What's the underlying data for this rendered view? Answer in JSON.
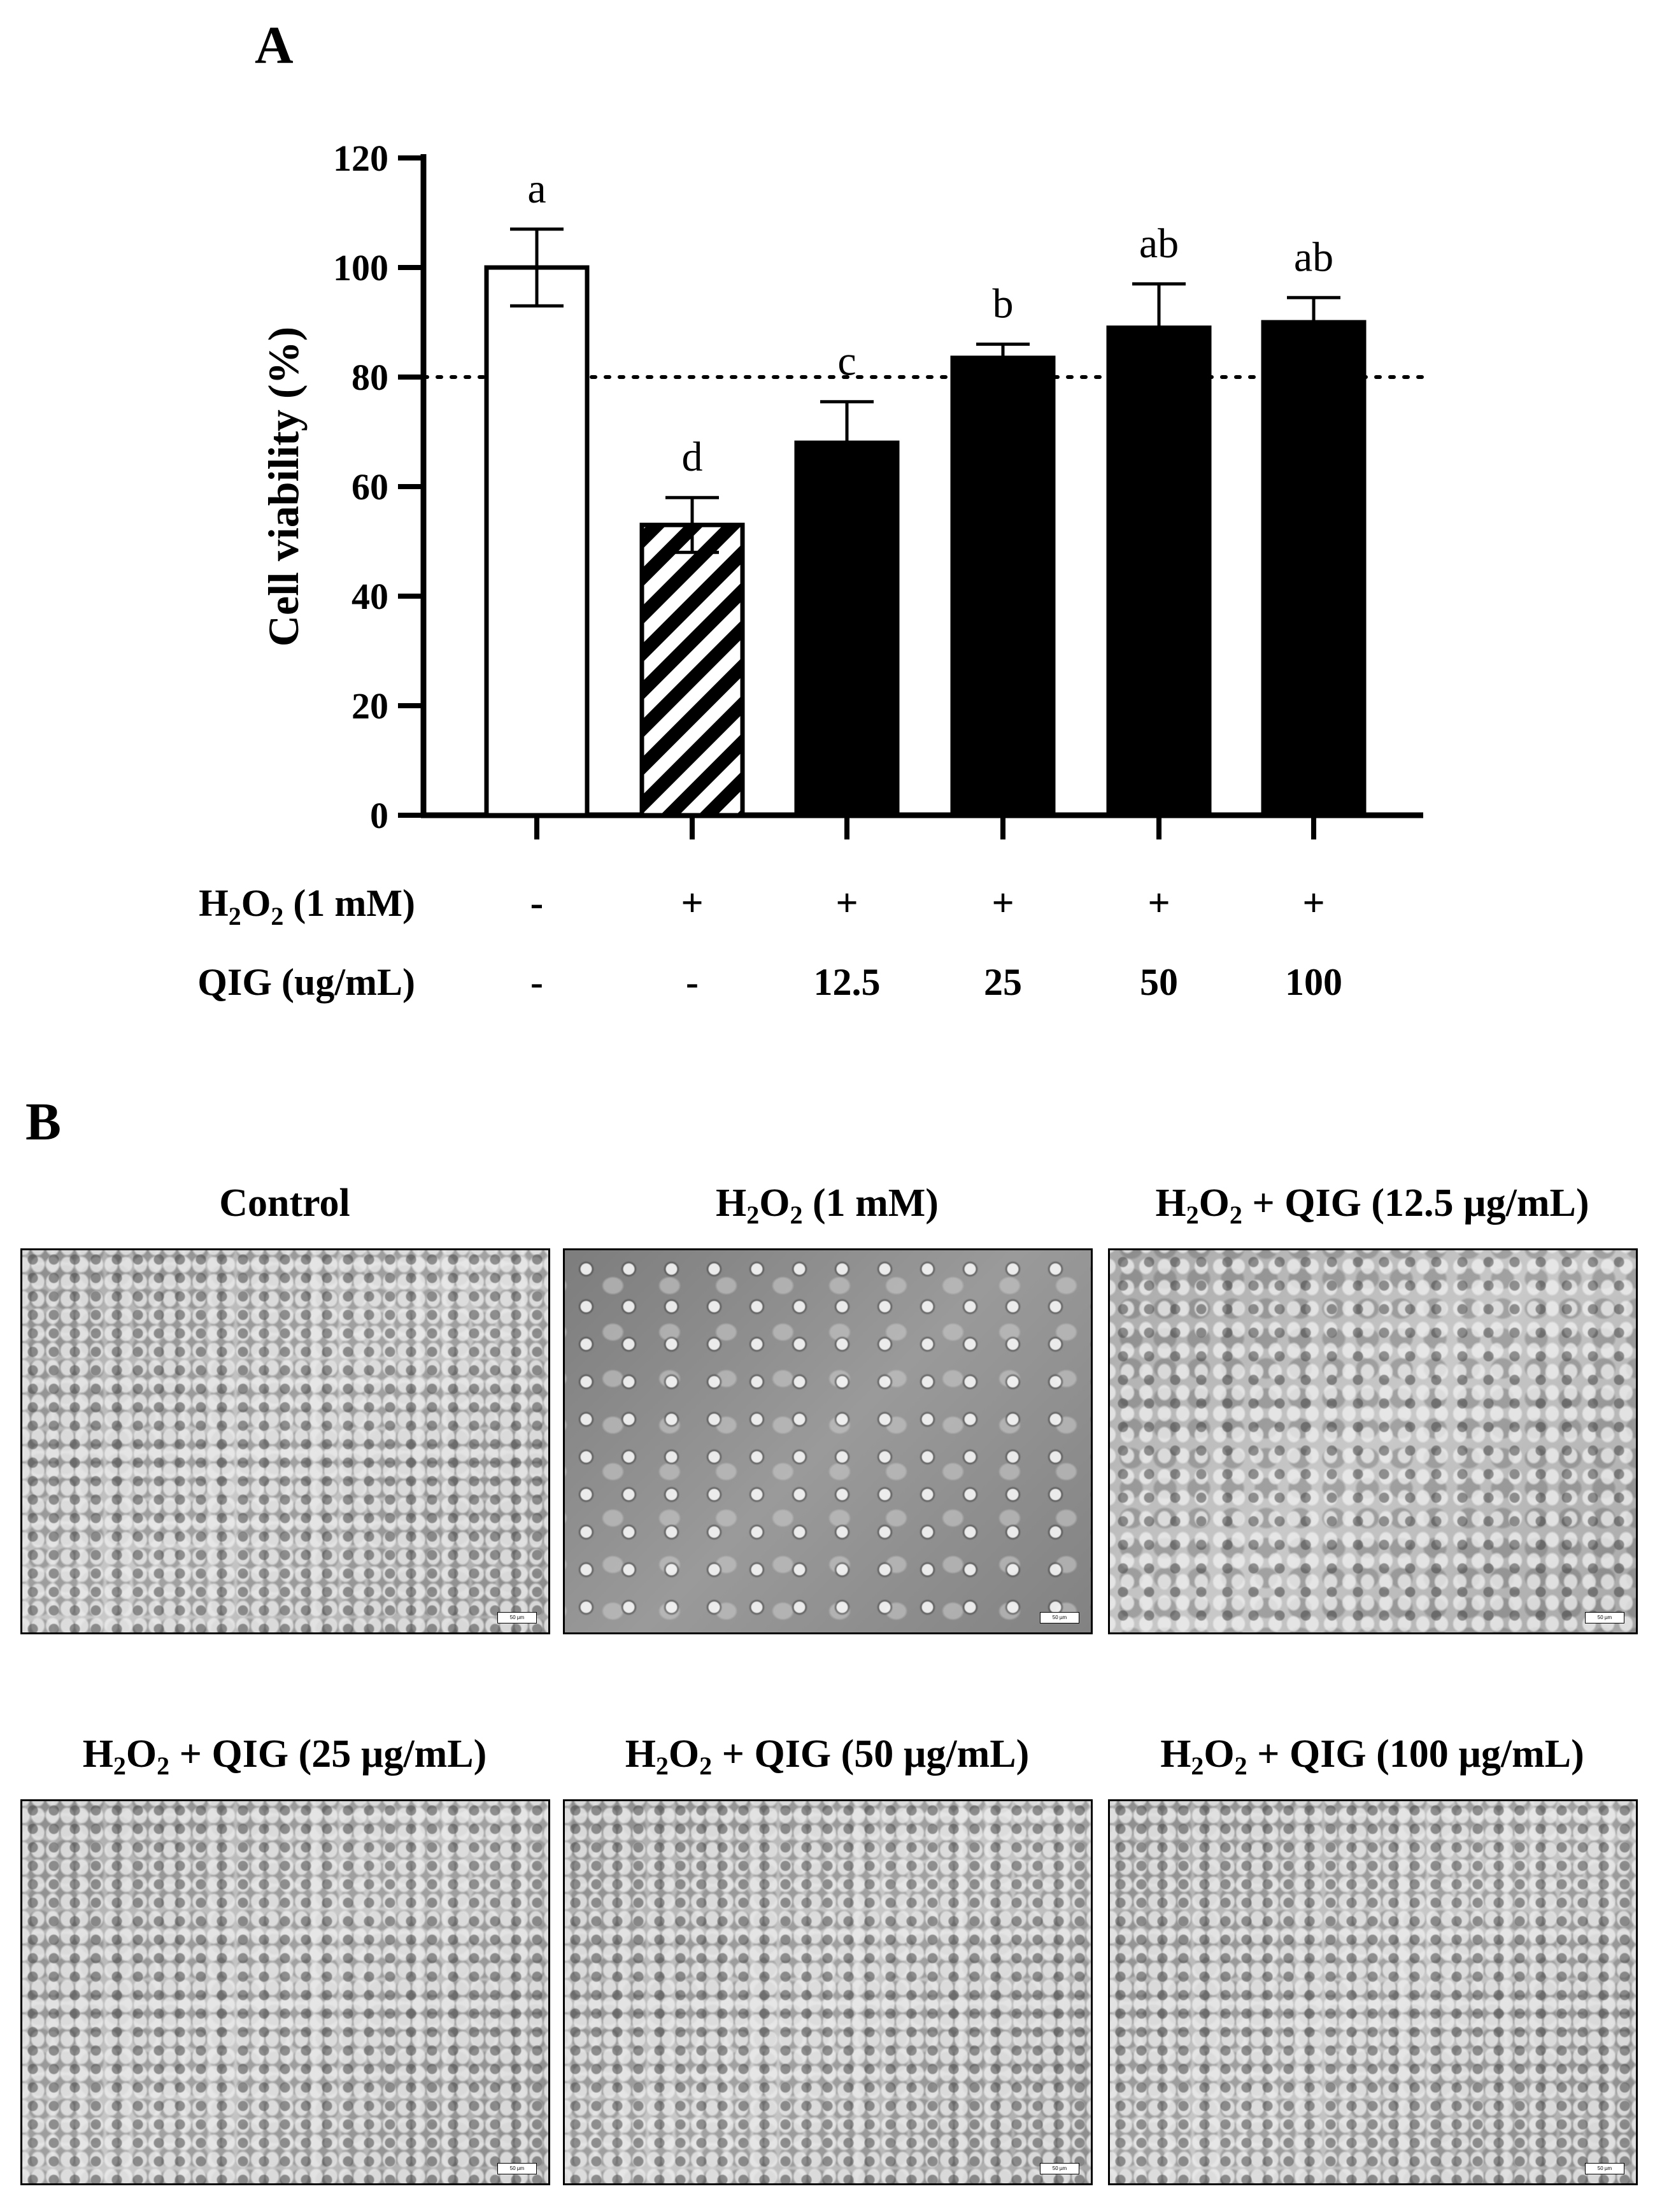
{
  "panel_a": {
    "letter": "A"
  },
  "panel_b": {
    "letter": "B"
  },
  "chart_data": {
    "type": "bar",
    "title": "",
    "xlabel": "",
    "ylabel": "Cell viability (%)",
    "ylim": [
      0,
      120
    ],
    "yticks": [
      "0",
      "20",
      "40",
      "60",
      "80",
      "100",
      "120"
    ],
    "reference_line": 80,
    "bars": [
      {
        "value": 100,
        "error": 7,
        "letter": "a",
        "fill": "white"
      },
      {
        "value": 53,
        "error": 5,
        "letter": "d",
        "fill": "hatched"
      },
      {
        "value": 68,
        "error": 7.5,
        "letter": "c",
        "fill": "black"
      },
      {
        "value": 83.5,
        "error": 2.5,
        "letter": "b",
        "fill": "black"
      },
      {
        "value": 89,
        "error": 8,
        "letter": "ab",
        "fill": "black"
      },
      {
        "value": 90,
        "error": 4.5,
        "letter": "ab",
        "fill": "black"
      }
    ],
    "treatment_rows": [
      {
        "label_main": "H",
        "label_sub1": "2",
        "label_mid": "O",
        "label_sub2": "2",
        "label_rest": " (1 mM)",
        "values": [
          "-",
          "+",
          "+",
          "+",
          "+",
          "+"
        ]
      },
      {
        "label": "QIG (ug/mL)",
        "values": [
          "-",
          "-",
          "12.5",
          "25",
          "50",
          "100"
        ]
      }
    ]
  },
  "micrographs": [
    {
      "title_pre": "",
      "title_h": "",
      "title_o": "",
      "title_post": "Control",
      "variant": "dense",
      "scale": "50 µm"
    },
    {
      "title_pre": "H",
      "title_h": "2",
      "title_o": "O",
      "title_post": " (1 mM)",
      "variant": "sparse",
      "scale": "50 µm"
    },
    {
      "title_pre": "H",
      "title_h": "2",
      "title_o": "O",
      "title_post": " + QIG (12.5 µg/mL)",
      "variant": "normal",
      "scale": "50 µm"
    },
    {
      "title_pre": "H",
      "title_h": "2",
      "title_o": "O",
      "title_post": " + QIG (25 µg/mL)",
      "variant": "dense",
      "scale": "50 µm"
    },
    {
      "title_pre": "H",
      "title_h": "2",
      "title_o": "O",
      "title_post": " + QIG (50 µg/mL)",
      "variant": "dense",
      "scale": "50 µm"
    },
    {
      "title_pre": "H",
      "title_h": "2",
      "title_o": "O",
      "title_post": " + QIG (100 µg/mL)",
      "variant": "dense",
      "scale": "50 µm"
    }
  ],
  "colors": {
    "bar_black": "#000000",
    "bar_white": "#ffffff",
    "axis": "#000000"
  }
}
